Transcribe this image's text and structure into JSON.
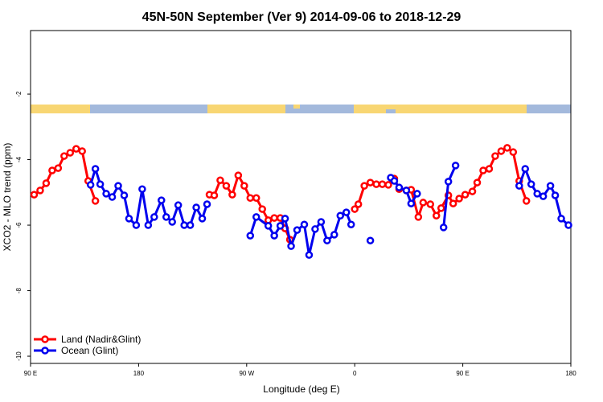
{
  "chart_data": {
    "type": "line",
    "title": "45N-50N September (Ver 9)   2014-09-06 to 2018-12-29",
    "x_label": "Longitude (deg E)",
    "y_label": "XCO2 - MLO trend (ppm)",
    "xlim": [
      90,
      540
    ],
    "xticks": [
      {
        "value": 90,
        "label": "90 E"
      },
      180,
      {
        "value": 270,
        "label": "90 W"
      },
      {
        "value": 360,
        "label": "0"
      },
      {
        "value": 450,
        "label": "90 E"
      },
      {
        "value": 540,
        "label": "180"
      }
    ],
    "ylim": [
      -10.22,
      -0.06
    ],
    "yticks": [
      -10,
      -8,
      -6,
      -4,
      -2
    ],
    "legend": "bottom-left",
    "series": [
      {
        "name": "Land (Nadir&Glint)",
        "color": "#ff0000",
        "x": [
          93,
          98,
          103,
          108,
          113,
          118,
          123,
          128,
          133,
          138,
          144,
          null,
          239,
          243,
          248,
          253,
          258,
          263,
          268,
          273,
          278,
          283,
          288,
          293,
          298,
          302,
          306,
          null,
          360,
          363,
          368,
          373,
          378,
          383,
          388,
          393,
          397,
          403,
          407,
          413,
          417,
          423,
          428,
          432,
          438,
          442,
          447,
          452,
          458,
          462,
          467,
          472,
          477,
          482,
          487,
          492,
          497,
          503
        ],
        "values": [
          -5.07,
          -4.94,
          -4.72,
          -4.33,
          -4.26,
          -3.89,
          -3.79,
          -3.67,
          -3.74,
          -4.65,
          -5.26,
          null,
          -5.07,
          -5.09,
          -4.63,
          -4.8,
          -5.07,
          -4.48,
          -4.8,
          -5.17,
          -5.17,
          -5.51,
          -5.85,
          -5.78,
          -5.78,
          -6.1,
          -6.44,
          null,
          -5.51,
          -5.36,
          -4.8,
          -4.7,
          -4.75,
          -4.75,
          -4.77,
          -4.58,
          -4.9,
          -4.94,
          -4.92,
          -5.75,
          -5.31,
          -5.36,
          -5.71,
          -5.48,
          -5.09,
          -5.34,
          -5.19,
          -5.07,
          -4.97,
          -4.7,
          -4.33,
          -4.28,
          -3.89,
          -3.74,
          -3.64,
          -3.77,
          -4.65,
          -5.26
        ]
      },
      {
        "name": "Ocean (Glint)",
        "color": "#0000ee",
        "x": [
          140,
          144,
          148,
          153,
          158,
          163,
          168,
          172,
          178,
          183,
          188,
          193,
          199,
          203,
          208,
          213,
          218,
          223,
          228,
          233,
          237,
          null,
          273,
          278,
          288,
          293,
          298,
          302,
          307,
          312,
          318,
          322,
          327,
          332,
          337,
          343,
          348,
          353,
          357,
          null,
          373,
          null,
          390,
          393,
          397,
          403,
          407,
          412,
          null,
          434,
          438,
          444,
          null,
          497,
          502,
          507,
          512,
          517,
          523,
          527,
          532,
          538
        ],
        "values": [
          -4.77,
          -4.28,
          -4.75,
          -5.04,
          -5.14,
          -4.8,
          -5.09,
          -5.8,
          -6.0,
          -4.9,
          -6.0,
          -5.75,
          -5.24,
          -5.75,
          -5.9,
          -5.39,
          -6.0,
          -6.0,
          -5.46,
          -5.8,
          -5.36,
          null,
          -6.32,
          -5.75,
          -6.02,
          -6.32,
          -6.02,
          -5.8,
          -6.64,
          -6.15,
          -5.98,
          -6.91,
          -6.12,
          -5.9,
          -6.47,
          -6.29,
          -5.71,
          -5.61,
          -5.98,
          null,
          -6.47,
          null,
          -4.55,
          -4.65,
          -4.85,
          -4.94,
          -5.34,
          -5.04,
          null,
          -6.07,
          -4.67,
          -4.18,
          null,
          -4.8,
          -4.28,
          -4.75,
          -5.04,
          -5.12,
          -4.8,
          -5.09,
          -5.8,
          -6.0
        ]
      }
    ]
  }
}
